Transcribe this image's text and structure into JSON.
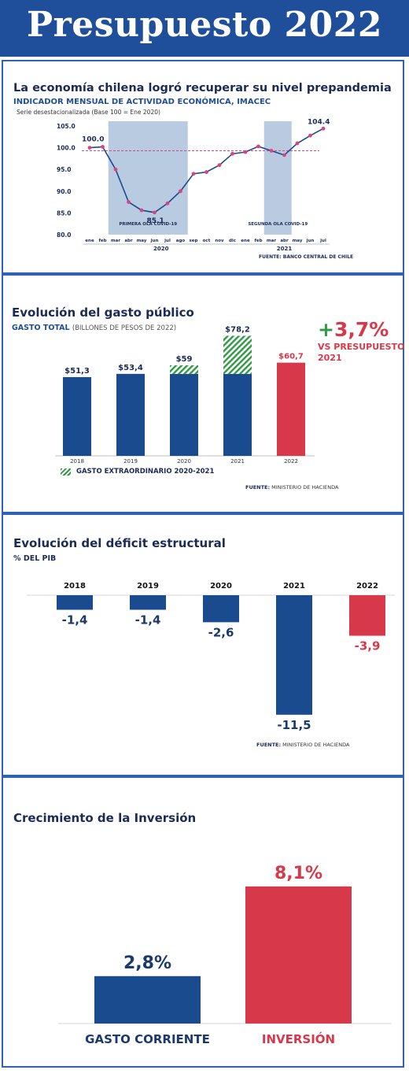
{
  "header": {
    "title": "Presupuesto 2022"
  },
  "colors": {
    "blue": "#1a4b8f",
    "red": "#d8394a",
    "green": "#2f9a43",
    "shade": "#b9cbe0",
    "dots": "#e0407e"
  },
  "chart_data": [
    {
      "type": "line",
      "title": "La economía chilena logró recuperar su nivel prepandemia",
      "subtitle": "INDICADOR MENSUAL DE ACTIVIDAD ECONÓMICA, IMACEC",
      "note": "Serie desestacionalizada (Base 100 = Ene 2020)",
      "x": [
        "ene",
        "feb",
        "mar",
        "abr",
        "may",
        "jun",
        "jul",
        "ago",
        "sep",
        "oct",
        "nov",
        "dic",
        "ene",
        "feb",
        "mar",
        "abr",
        "may",
        "jun",
        "jul"
      ],
      "year_labels": [
        "2020",
        "2021"
      ],
      "values": [
        100.0,
        100.2,
        95.0,
        87.5,
        85.6,
        85.1,
        87.2,
        90.0,
        94.0,
        94.4,
        96.0,
        98.6,
        99.0,
        100.3,
        99.3,
        98.3,
        101.0,
        102.8,
        104.4
      ],
      "value_labels": {
        "first": "100.0",
        "min": "85.1",
        "last": "104.4"
      },
      "yticks": [
        "105.0",
        "100.0",
        "95.0",
        "90.0",
        "85.0",
        "80.0"
      ],
      "ylim": [
        80,
        105
      ],
      "reference_line": 99.3,
      "shaded_periods": [
        {
          "label": "PRIMERA OLA COVID-19",
          "from_index": 1.5,
          "to_index": 7.5
        },
        {
          "label": "SEGUNDA OLA COVID-19",
          "from_index": 13.5,
          "to_index": 15.5
        }
      ],
      "source": "FUENTE: BANCO CENTRAL DE CHILE"
    },
    {
      "type": "bar",
      "title": "Evolución del gasto público",
      "subtitle": "GASTO TOTAL",
      "subtitle_unit": "(BILLONES DE PESOS DE 2022)",
      "categories": [
        "2018",
        "2019",
        "2020",
        "2021",
        "2022"
      ],
      "values": [
        51.3,
        53.4,
        59.0,
        78.2,
        60.7
      ],
      "value_labels": [
        "$51,3",
        "$53,4",
        "$59",
        "$78,2",
        "$60,7"
      ],
      "base_values": [
        51.3,
        53.4,
        53.4,
        53.4,
        60.7
      ],
      "extraordinary": [
        0,
        0,
        5.6,
        24.8,
        0
      ],
      "bar_colors": [
        "blue",
        "blue",
        "blue",
        "blue",
        "red"
      ],
      "highlight": {
        "value": "+3,7%",
        "line1": "VS PRESUPUESTO",
        "line2": "2021"
      },
      "legend": "GASTO EXTRAORDINARIO 2020-2021",
      "source_label": "FUENTE:",
      "source_value": "MINISTERIO DE HACIENDA"
    },
    {
      "type": "bar",
      "title": "Evolución del déficit estructural",
      "subtitle": "% DEL PIB",
      "categories": [
        "2018",
        "2019",
        "2020",
        "2021",
        "2022"
      ],
      "values": [
        -1.4,
        -1.4,
        -2.6,
        -11.5,
        -3.9
      ],
      "value_labels": [
        "-1,4",
        "-1,4",
        "-2,6",
        "-11,5",
        "-3,9"
      ],
      "bar_colors": [
        "blue",
        "blue",
        "blue",
        "blue",
        "red"
      ],
      "source_label": "FUENTE:",
      "source_value": "MINISTERIO DE HACIENDA"
    },
    {
      "type": "bar",
      "title": "Crecimiento de la Inversión",
      "categories": [
        "GASTO CORRIENTE",
        "INVERSIÓN"
      ],
      "values": [
        2.8,
        8.1
      ],
      "value_labels": [
        "2,8%",
        "8,1%"
      ],
      "bar_colors": [
        "blue",
        "red"
      ]
    }
  ]
}
